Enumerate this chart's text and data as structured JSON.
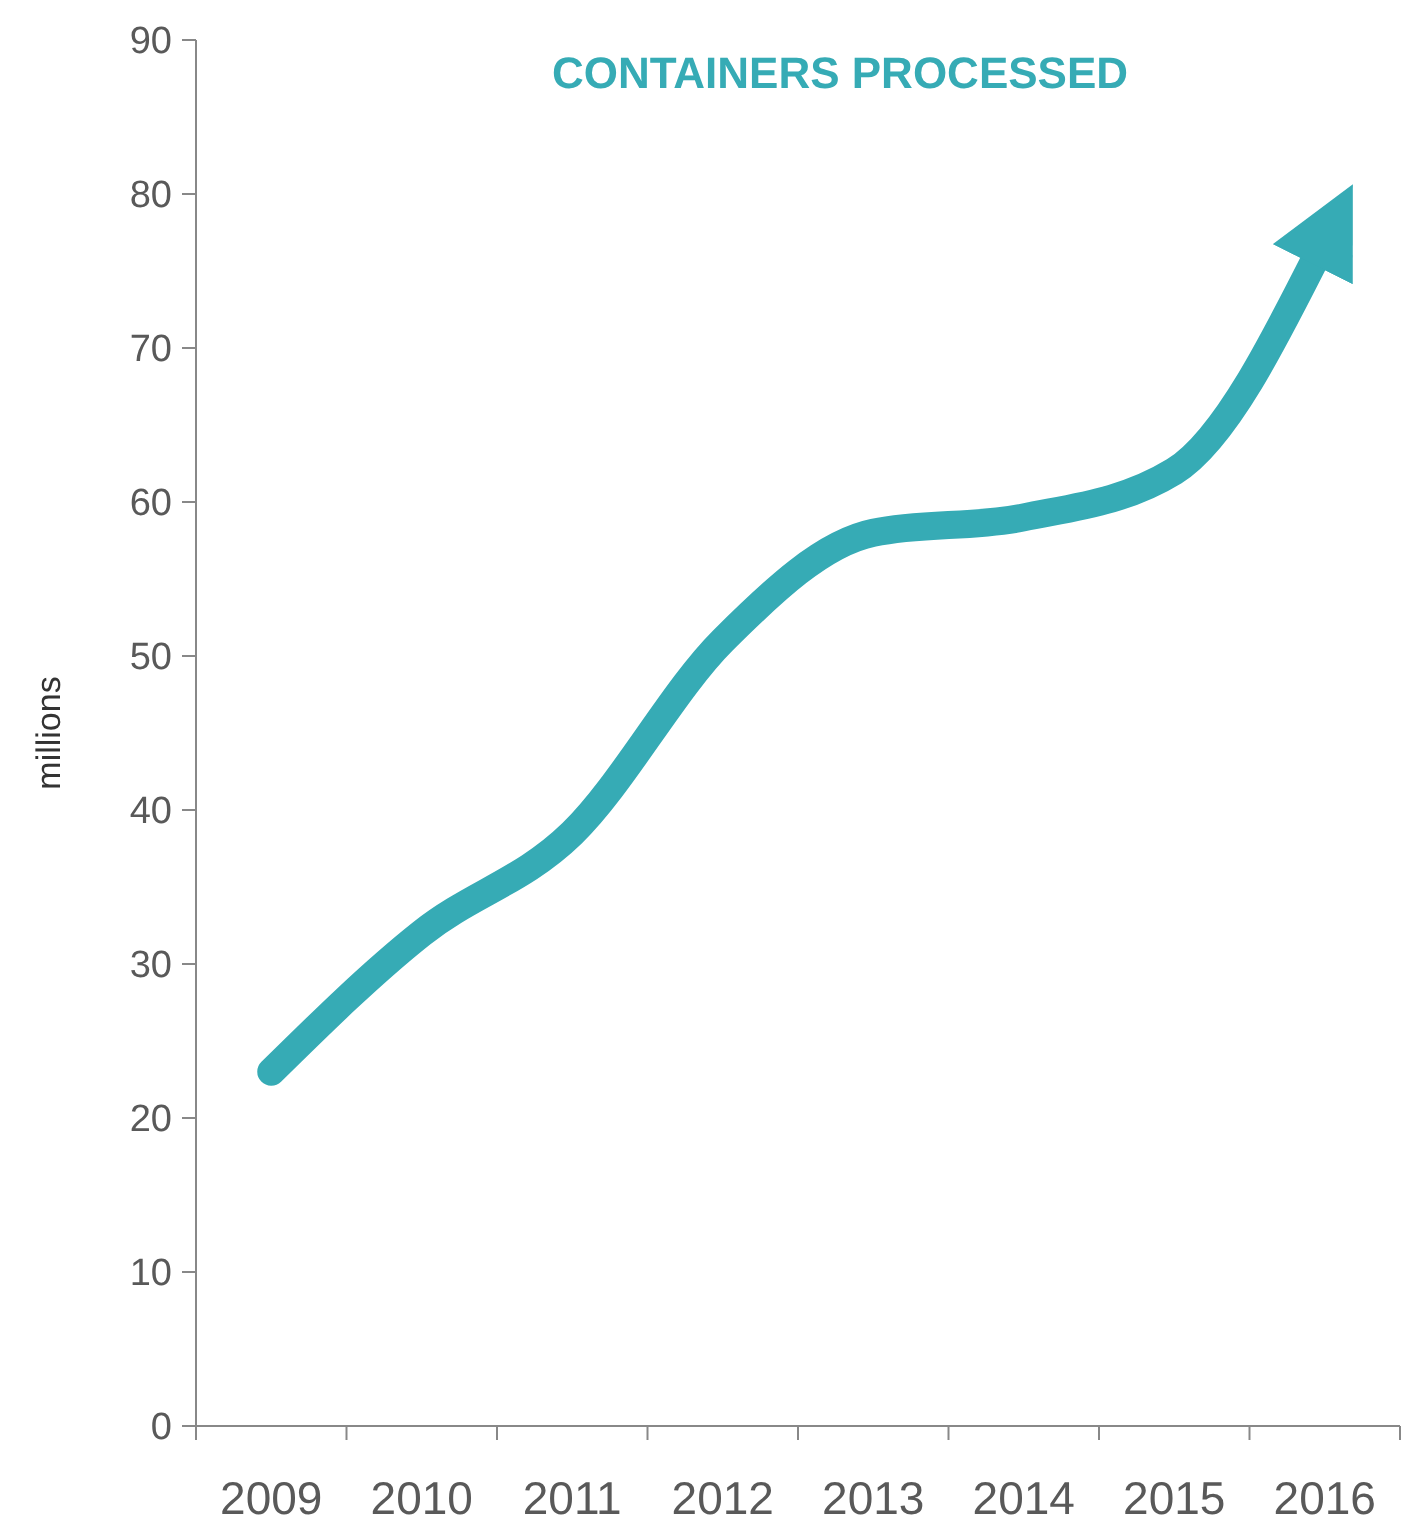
{
  "chart_data": {
    "type": "line",
    "title": "CONTAINERS PROCESSED",
    "ylabel": "millions",
    "categories": [
      "2009",
      "2010",
      "2011",
      "2012",
      "2013",
      "2014",
      "2015",
      "2016"
    ],
    "series": [
      {
        "color": "#36abb5",
        "values": [
          23,
          32,
          38.5,
          51,
          58,
          59,
          62,
          77
        ]
      }
    ],
    "ylim": [
      0,
      90
    ],
    "yticks": [
      0,
      10,
      20,
      30,
      40,
      50,
      60,
      70,
      80,
      90
    ],
    "grid": false,
    "marker": "none",
    "line_style": "solid"
  }
}
